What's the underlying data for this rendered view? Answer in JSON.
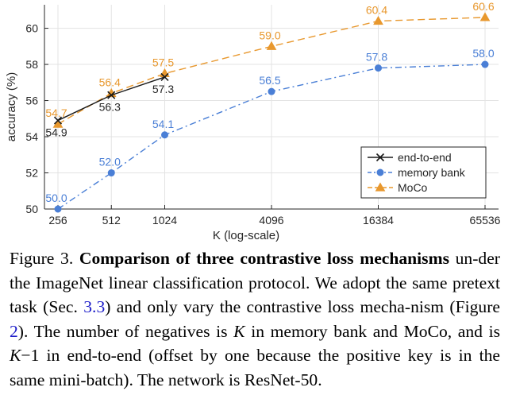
{
  "chart_data": {
    "type": "line",
    "xlabel": "K (log-scale)",
    "ylabel": "accuracy (%)",
    "x_scale": "log2",
    "x_ticks": [
      256,
      512,
      1024,
      4096,
      16384,
      65536
    ],
    "y_ticks": [
      50,
      52,
      54,
      56,
      58,
      60
    ],
    "ylim": [
      50,
      61.3
    ],
    "grid": true,
    "legend_position": "lower-right",
    "series": [
      {
        "name": "end-to-end",
        "color": "#1a1a1a",
        "marker": "x",
        "line_style": "solid",
        "x": [
          256,
          512,
          1024
        ],
        "y": [
          54.9,
          56.3,
          57.3
        ],
        "labels": [
          "54.9",
          "56.3",
          "57.3"
        ]
      },
      {
        "name": "memory bank",
        "color": "#4a7fd6",
        "marker": "circle",
        "line_style": "dash-dot",
        "x": [
          256,
          512,
          1024,
          4096,
          16384,
          65536
        ],
        "y": [
          50.0,
          52.0,
          54.1,
          56.5,
          57.8,
          58.0
        ],
        "labels": [
          "50.0",
          "52.0",
          "54.1",
          "56.5",
          "57.8",
          "58.0"
        ]
      },
      {
        "name": "MoCo",
        "color": "#e8982e",
        "marker": "triangle",
        "line_style": "dashed",
        "x": [
          256,
          512,
          1024,
          4096,
          16384,
          65536
        ],
        "y": [
          54.7,
          56.4,
          57.5,
          59.0,
          60.4,
          60.6
        ],
        "labels": [
          "54.7",
          "56.4",
          "57.5",
          "59.0",
          "60.4",
          "60.6"
        ]
      }
    ]
  },
  "caption": {
    "figure_label": "Figure 3.",
    "bold_title": "Comparison of three contrastive loss mechanisms",
    "text_1": " un-der the ImageNet linear classification protocol. We adopt the same pretext task (Sec. ",
    "ref_1": "3.3",
    "text_2": ") and only vary the contrastive loss mecha-nism (Figure ",
    "ref_2": "2",
    "text_3": "). The number of negatives is ",
    "var_k_1": "K",
    "text_4": " in memory bank and MoCo, and is ",
    "var_k_2": "K",
    "text_5": "−1 in end-to-end (offset by one because the positive key is in the same mini-batch). The network is ResNet-50."
  }
}
